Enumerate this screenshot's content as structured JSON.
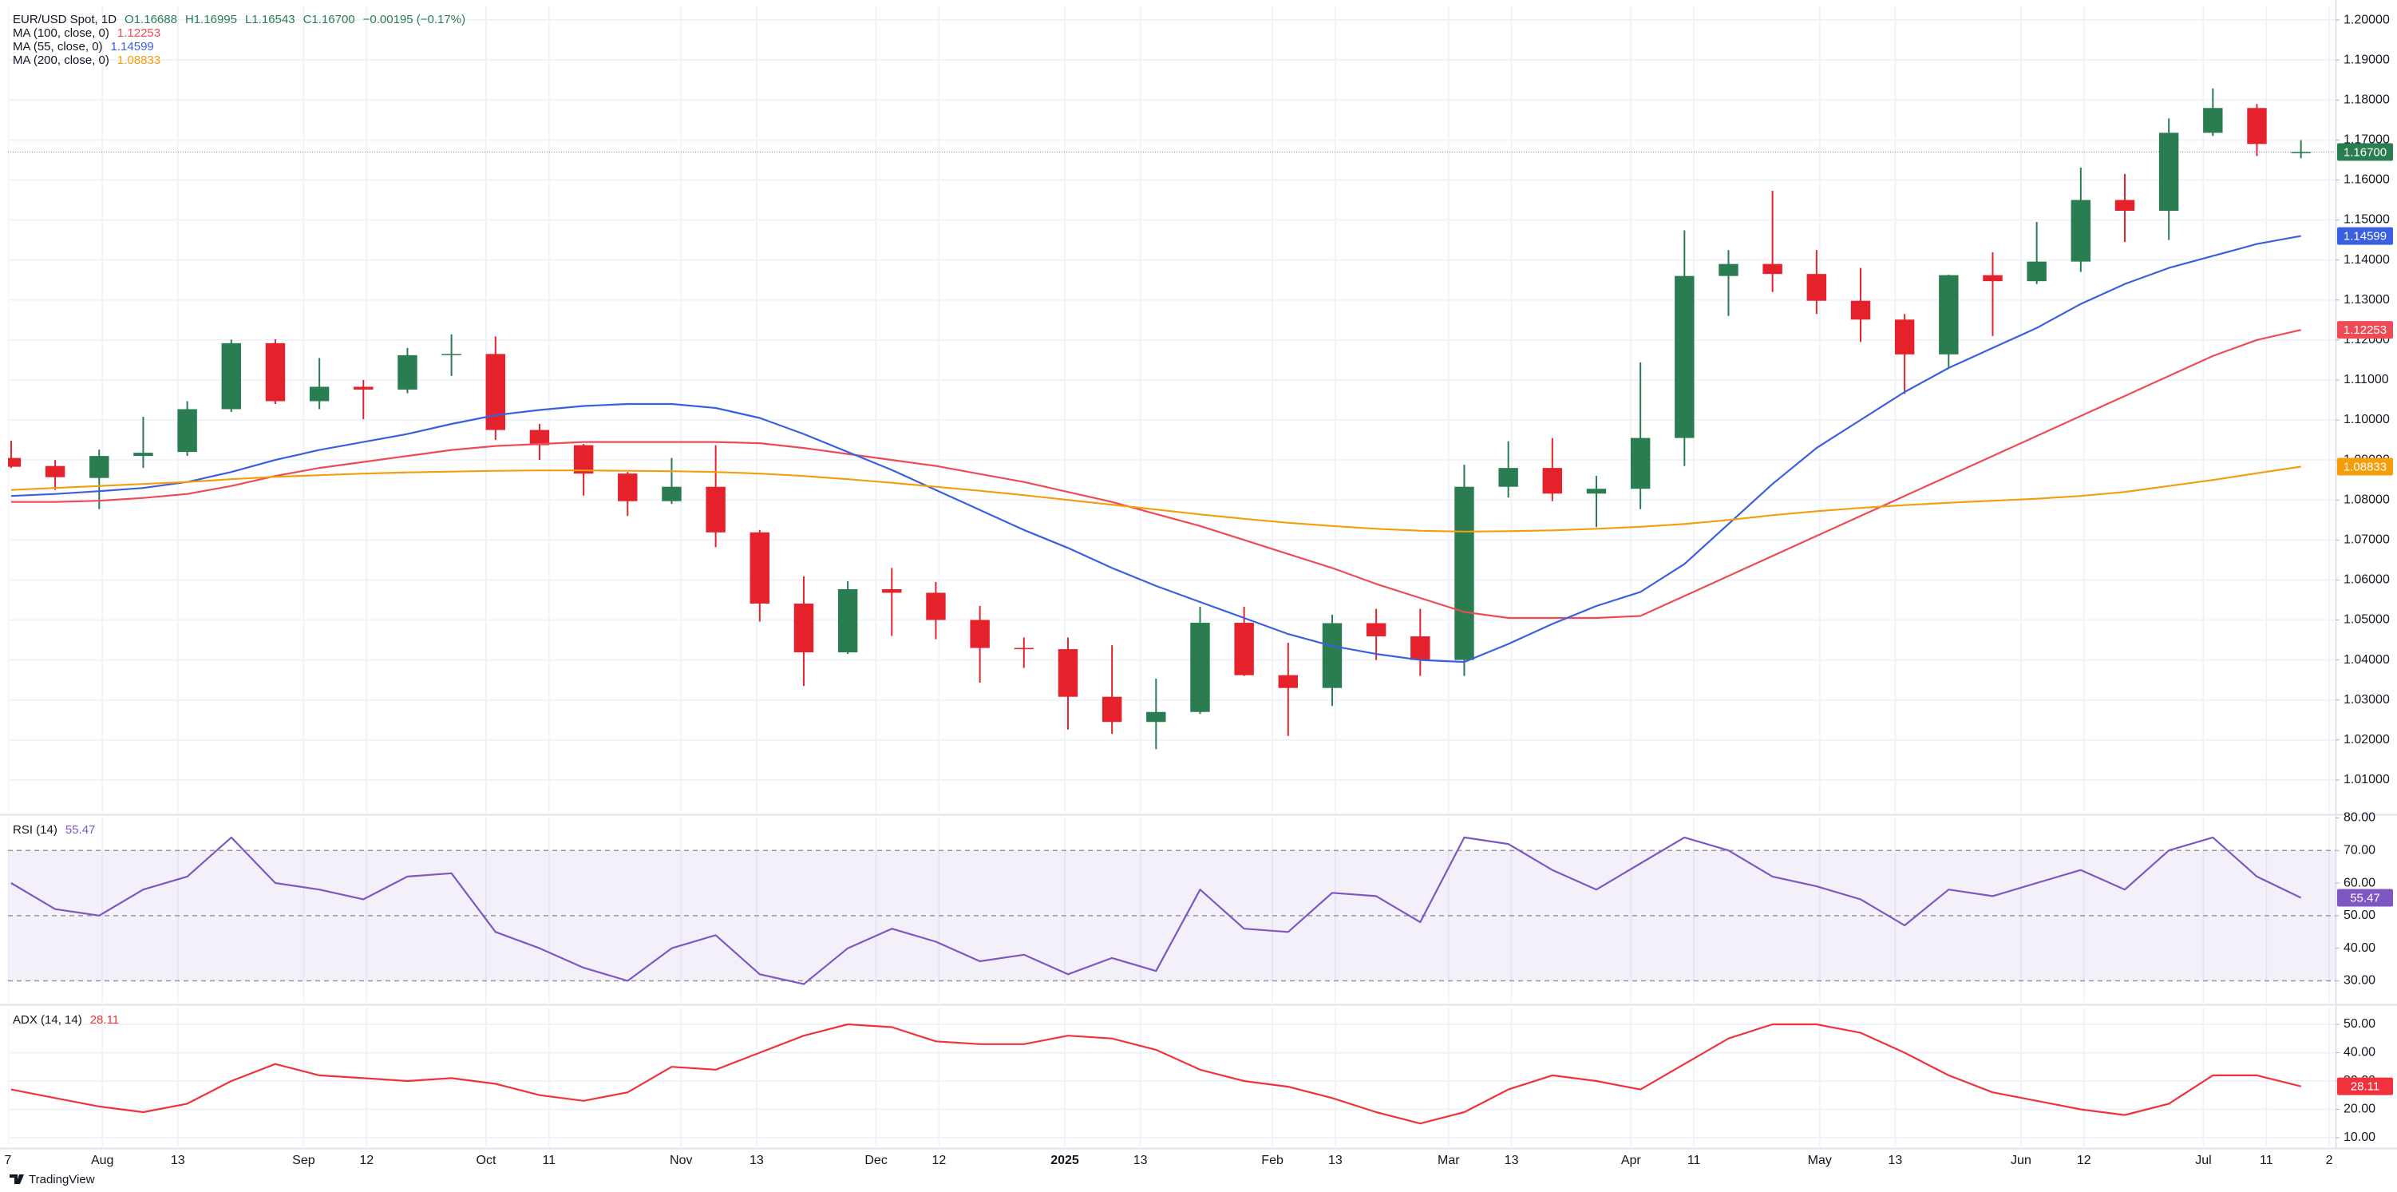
{
  "header": {
    "symbol": "EUR/USD Spot, 1D",
    "open": "O1.16688",
    "high": "H1.16995",
    "low": "L1.16543",
    "close": "C1.16700",
    "change": "−0.00195 (−0.17%)"
  },
  "chart_data": [
    {
      "type": "candlestick",
      "x": [
        "2024-07-15",
        "2024-07-22",
        "2024-07-29",
        "2024-08-05",
        "2024-08-12",
        "2024-08-19",
        "2024-08-26",
        "2024-09-02",
        "2024-09-09",
        "2024-09-16",
        "2024-09-23",
        "2024-09-30",
        "2024-10-07",
        "2024-10-14",
        "2024-10-21",
        "2024-10-28",
        "2024-11-04",
        "2024-11-11",
        "2024-11-18",
        "2024-11-25",
        "2024-12-02",
        "2024-12-09",
        "2024-12-16",
        "2024-12-23",
        "2024-12-30",
        "2025-01-06",
        "2025-01-13",
        "2025-01-20",
        "2025-01-27",
        "2025-02-03",
        "2025-02-10",
        "2025-02-17",
        "2025-02-24",
        "2025-03-03",
        "2025-03-10",
        "2025-03-17",
        "2025-03-24",
        "2025-03-31",
        "2025-04-07",
        "2025-04-14",
        "2025-04-21",
        "2025-04-28",
        "2025-05-05",
        "2025-05-12",
        "2025-05-19",
        "2025-05-26",
        "2025-06-02",
        "2025-06-09",
        "2025-06-16",
        "2025-06-23",
        "2025-06-30",
        "2025-07-07",
        "2025-07-14"
      ],
      "open": [
        1.0905,
        1.0885,
        1.0855,
        1.091,
        1.092,
        1.1027,
        1.1192,
        1.1047,
        1.1083,
        1.1076,
        1.1162,
        1.1165,
        1.0975,
        1.0937,
        1.0866,
        1.0797,
        1.0833,
        1.0719,
        1.0541,
        1.0419,
        1.0577,
        1.0568,
        1.05,
        1.043,
        1.0427,
        1.0308,
        1.0245,
        1.027,
        1.0493,
        1.0362,
        1.033,
        1.0492,
        1.0459,
        1.04,
        1.0833,
        1.088,
        1.0816,
        1.0828,
        1.0955,
        1.136,
        1.139,
        1.1365,
        1.1298,
        1.1251,
        1.1164,
        1.1362,
        1.1347,
        1.1396,
        1.155,
        1.1523,
        1.1718,
        1.178,
        1.16688
      ],
      "high": [
        1.0948,
        1.09,
        1.0926,
        1.1008,
        1.1047,
        1.1201,
        1.1202,
        1.1155,
        1.11,
        1.118,
        1.1214,
        1.1209,
        1.099,
        1.094,
        1.087,
        1.0905,
        1.0937,
        1.0725,
        1.0609,
        1.0597,
        1.063,
        1.0595,
        1.0535,
        1.0456,
        1.0456,
        1.0437,
        1.0353,
        1.0533,
        1.0533,
        1.0443,
        1.0513,
        1.0528,
        1.0528,
        1.0888,
        1.0947,
        1.0955,
        1.086,
        1.1144,
        1.1474,
        1.1425,
        1.1573,
        1.1425,
        1.138,
        1.1265,
        1.1363,
        1.1419,
        1.1495,
        1.1631,
        1.1615,
        1.1754,
        1.1829,
        1.179,
        1.16995
      ],
      "low": [
        1.088,
        1.0825,
        1.0777,
        1.088,
        1.091,
        1.102,
        1.104,
        1.1027,
        1.1002,
        1.1067,
        1.111,
        1.095,
        1.09,
        1.0811,
        1.076,
        1.079,
        1.0682,
        1.0496,
        1.0335,
        1.0415,
        1.046,
        1.0452,
        1.0343,
        1.038,
        1.0226,
        1.0215,
        1.0177,
        1.0265,
        1.036,
        1.021,
        1.0285,
        1.04,
        1.036,
        1.036,
        1.0806,
        1.0797,
        1.0732,
        1.0777,
        1.0885,
        1.126,
        1.132,
        1.1265,
        1.1195,
        1.1065,
        1.113,
        1.121,
        1.134,
        1.137,
        1.1445,
        1.145,
        1.171,
        1.166,
        1.16543
      ],
      "close": [
        1.0883,
        1.0857,
        1.091,
        1.0918,
        1.1027,
        1.1192,
        1.1047,
        1.1083,
        1.1076,
        1.1162,
        1.1165,
        1.0975,
        1.0937,
        1.0866,
        1.0797,
        1.0833,
        1.0719,
        1.0541,
        1.0419,
        1.0577,
        1.0568,
        1.05,
        1.043,
        1.0427,
        1.0308,
        1.0245,
        1.027,
        1.0493,
        1.0362,
        1.033,
        1.0492,
        1.0459,
        1.04,
        1.0833,
        1.088,
        1.0816,
        1.0828,
        1.0955,
        1.136,
        1.139,
        1.1365,
        1.1298,
        1.1251,
        1.1164,
        1.1362,
        1.1347,
        1.1396,
        1.155,
        1.1523,
        1.1718,
        1.178,
        1.169,
        1.167
      ],
      "up_color": "#2a7d50",
      "down_color": "#e5222b",
      "series": [
        {
          "name": "MA (100, close, 0)",
          "color": "#ef4b55",
          "values": [
            1.0795,
            1.0795,
            1.0798,
            1.0805,
            1.0815,
            1.0835,
            1.086,
            1.088,
            1.0895,
            1.091,
            1.0925,
            1.0935,
            1.094,
            1.0945,
            1.0945,
            1.0945,
            1.0945,
            1.0942,
            1.093,
            1.0915,
            1.09,
            1.0885,
            1.0865,
            1.0845,
            1.082,
            1.0795,
            1.0765,
            1.0735,
            1.07,
            1.0665,
            1.063,
            1.059,
            1.0555,
            1.052,
            1.0505,
            1.0505,
            1.0505,
            1.051,
            1.056,
            1.061,
            1.066,
            1.071,
            1.076,
            1.081,
            1.086,
            1.091,
            1.096,
            1.101,
            1.106,
            1.111,
            1.116,
            1.12,
            1.12253
          ]
        },
        {
          "name": "MA (55, close, 0)",
          "color": "#3a5fe0",
          "values": [
            1.081,
            1.0815,
            1.0822,
            1.083,
            1.0845,
            1.087,
            1.09,
            1.0925,
            1.0945,
            1.0965,
            1.099,
            1.1012,
            1.1025,
            1.1035,
            1.104,
            1.104,
            1.103,
            1.1005,
            1.0965,
            1.092,
            1.0875,
            1.0825,
            1.0775,
            1.0725,
            1.068,
            1.063,
            1.0585,
            1.0545,
            1.0505,
            1.0465,
            1.0435,
            1.0415,
            1.04,
            1.0395,
            1.044,
            1.049,
            1.0535,
            1.057,
            1.064,
            1.074,
            1.084,
            1.093,
            1.1,
            1.107,
            1.113,
            1.118,
            1.123,
            1.129,
            1.134,
            1.138,
            1.141,
            1.144,
            1.14599
          ]
        },
        {
          "name": "MA (200, close, 0)",
          "color": "#f59d0b",
          "values": [
            1.0825,
            1.083,
            1.0835,
            1.084,
            1.0845,
            1.0852,
            1.0858,
            1.0862,
            1.0866,
            1.0869,
            1.0871,
            1.0873,
            1.0874,
            1.0874,
            1.0873,
            1.0872,
            1.087,
            1.0866,
            1.086,
            1.0852,
            1.0843,
            1.0833,
            1.0823,
            1.0812,
            1.08,
            1.0788,
            1.0776,
            1.0764,
            1.0753,
            1.0743,
            1.0735,
            1.0728,
            1.0723,
            1.0721,
            1.0722,
            1.0724,
            1.0728,
            1.0733,
            1.074,
            1.075,
            1.0762,
            1.0772,
            1.078,
            1.0787,
            1.0793,
            1.0798,
            1.0803,
            1.081,
            1.082,
            1.0835,
            1.085,
            1.0867,
            1.08833
          ]
        }
      ],
      "price_tag": {
        "value": 1.167,
        "label": "1.16700"
      },
      "xlim": [
        "2024-07-17",
        "2025-07-22"
      ],
      "xticks": [
        {
          "value": "2024-07-17",
          "label": "7"
        },
        {
          "value": "2024-08-01",
          "label": "Aug"
        },
        {
          "value": "2024-08-13",
          "label": "13"
        },
        {
          "value": "2024-09-02",
          "label": "Sep"
        },
        {
          "value": "2024-09-12",
          "label": "12"
        },
        {
          "value": "2024-10-01",
          "label": "Oct"
        },
        {
          "value": "2024-10-11",
          "label": "11"
        },
        {
          "value": "2024-11-01",
          "label": "Nov"
        },
        {
          "value": "2024-11-13",
          "label": "13"
        },
        {
          "value": "2024-12-02",
          "label": "Dec"
        },
        {
          "value": "2024-12-12",
          "label": "12"
        },
        {
          "value": "2025-01-01",
          "label": "2025"
        },
        {
          "value": "2025-01-13",
          "label": "13"
        },
        {
          "value": "2025-02-03",
          "label": "Feb"
        },
        {
          "value": "2025-02-13",
          "label": "13"
        },
        {
          "value": "2025-03-03",
          "label": "Mar"
        },
        {
          "value": "2025-03-13",
          "label": "13"
        },
        {
          "value": "2025-04-01",
          "label": "Apr"
        },
        {
          "value": "2025-04-11",
          "label": "11"
        },
        {
          "value": "2025-05-01",
          "label": "May"
        },
        {
          "value": "2025-05-13",
          "label": "13"
        },
        {
          "value": "2025-06-02",
          "label": "Jun"
        },
        {
          "value": "2025-06-12",
          "label": "12"
        },
        {
          "value": "2025-07-01",
          "label": "Jul"
        },
        {
          "value": "2025-07-11",
          "label": "11"
        },
        {
          "value": "2025-07-21",
          "label": "2"
        }
      ],
      "ylim": [
        1.0018,
        1.2034
      ],
      "yticks": [
        {
          "value": 1.01,
          "label": "1.01000"
        },
        {
          "value": 1.02,
          "label": "1.02000"
        },
        {
          "value": 1.03,
          "label": "1.03000"
        },
        {
          "value": 1.04,
          "label": "1.04000"
        },
        {
          "value": 1.05,
          "label": "1.05000"
        },
        {
          "value": 1.06,
          "label": "1.06000"
        },
        {
          "value": 1.07,
          "label": "1.07000"
        },
        {
          "value": 1.08,
          "label": "1.08000"
        },
        {
          "value": 1.09,
          "label": "1.09000"
        },
        {
          "value": 1.1,
          "label": "1.10000"
        },
        {
          "value": 1.11,
          "label": "1.11000"
        },
        {
          "value": 1.12,
          "label": "1.12000"
        },
        {
          "value": 1.13,
          "label": "1.13000"
        },
        {
          "value": 1.14,
          "label": "1.14000"
        },
        {
          "value": 1.15,
          "label": "1.15000"
        },
        {
          "value": 1.16,
          "label": "1.16000"
        },
        {
          "value": 1.17,
          "label": "1.17000"
        },
        {
          "value": 1.18,
          "label": "1.18000"
        },
        {
          "value": 1.19,
          "label": "1.19000"
        },
        {
          "value": 1.2,
          "label": "1.20000"
        }
      ],
      "grid": true
    },
    {
      "type": "line",
      "series": [
        {
          "name": "RSI (14)",
          "color": "#7e57c2",
          "values": [
            60,
            52,
            50,
            58,
            62,
            74,
            60,
            58,
            55,
            62,
            63,
            45,
            40,
            34,
            30,
            40,
            44,
            32,
            29,
            40,
            46,
            42,
            36,
            38,
            32,
            37,
            33,
            58,
            46,
            45,
            57,
            56,
            48,
            74,
            72,
            64,
            58,
            66,
            74,
            70,
            62,
            59,
            55,
            47,
            58,
            56,
            60,
            64,
            58,
            70,
            74,
            62,
            55.47
          ]
        }
      ],
      "band": [
        30,
        70
      ],
      "levels": [
        30,
        50,
        70
      ],
      "band_color": "#7e57c2",
      "ylim": [
        23.5,
        80.1
      ],
      "yticks": [
        {
          "value": 30,
          "label": "30.00"
        },
        {
          "value": 40,
          "label": "40.00"
        },
        {
          "value": 50,
          "label": "50.00"
        },
        {
          "value": 60,
          "label": "60.00"
        },
        {
          "value": 70,
          "label": "70.00"
        },
        {
          "value": 80,
          "label": "80.00"
        }
      ],
      "grid": true
    },
    {
      "type": "line",
      "series": [
        {
          "name": "ADX (14, 14)",
          "color": "#f0323c",
          "values": [
            27,
            24,
            21,
            19,
            22,
            30,
            36,
            32,
            31,
            30,
            31,
            29,
            25,
            23,
            26,
            35,
            34,
            40,
            46,
            50,
            49,
            44,
            43,
            43,
            46,
            45,
            41,
            34,
            30,
            28,
            24,
            19,
            15,
            19,
            27,
            32,
            30,
            27,
            36,
            45,
            50,
            50,
            47,
            40,
            32,
            26,
            23,
            20,
            18,
            22,
            32,
            32,
            28.11
          ]
        }
      ],
      "ylim": [
        6.9,
        55.9
      ],
      "yticks": [
        {
          "value": 10,
          "label": "10.00"
        },
        {
          "value": 20,
          "label": "20.00"
        },
        {
          "value": 30,
          "label": "30.00"
        },
        {
          "value": 40,
          "label": "40.00"
        },
        {
          "value": 50,
          "label": "50.00"
        }
      ],
      "grid": true
    }
  ],
  "footer": {
    "brand": "TradingView"
  }
}
